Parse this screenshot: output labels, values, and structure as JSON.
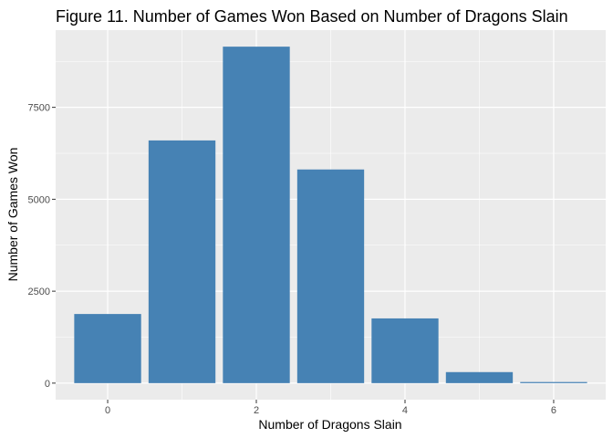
{
  "chart_data": {
    "type": "bar",
    "title": "Figure 11. Number of Games Won Based on Number of Dragons Slain",
    "xlabel": "Number of Dragons Slain",
    "ylabel": "Number of Games Won",
    "categories": [
      0,
      1,
      2,
      3,
      4,
      5,
      6
    ],
    "values": [
      1880,
      6600,
      9150,
      5810,
      1760,
      300,
      30
    ],
    "x_ticks": [
      0,
      2,
      4,
      6
    ],
    "y_ticks": [
      0,
      2500,
      5000,
      7500
    ],
    "xlim": [
      -0.7,
      6.7
    ],
    "ylim": [
      -450,
      9600
    ],
    "grid": true,
    "colors": {
      "bar": "#4682b4",
      "panel": "#ebebeb",
      "grid": "#ffffff",
      "tick_text": "#4d4d4d"
    }
  }
}
